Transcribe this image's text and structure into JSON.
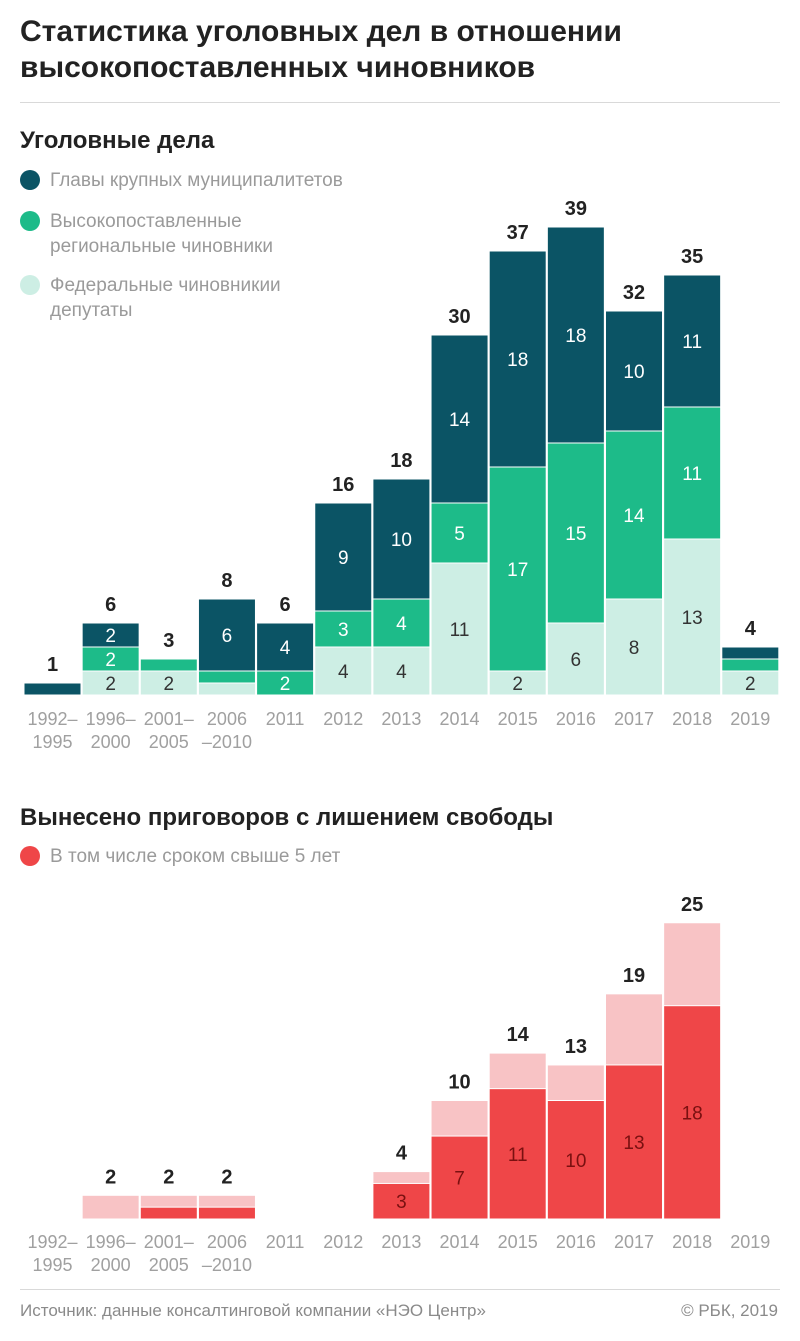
{
  "title": "Статистика уголовных дел в отношении высокопоставленных чиновников",
  "colors": {
    "municipal": "#0b5465",
    "regional": "#1dbb89",
    "federal": "#cdeee4",
    "sentence_total": "#f8c3c5",
    "sentence_over5": "#ef4648"
  },
  "charts": {
    "cases": {
      "title": "Уголовные дела",
      "legend": [
        {
          "lines": [
            "Главы крупных муниципалитетов"
          ]
        },
        {
          "lines": [
            "Высокопоставленные",
            "региональные чиновники"
          ]
        },
        {
          "lines": [
            "Федеральные чиновникии",
            "депутаты"
          ]
        }
      ]
    },
    "sentences": {
      "title": "Вынесено приговоров с лишением свободы",
      "legend": [
        {
          "lines": [
            "В том числе сроком свыше 5 лет"
          ]
        }
      ]
    }
  },
  "chart_data": [
    {
      "type": "bar",
      "stacked": true,
      "title": "Уголовные дела",
      "categories": [
        [
          "1992–",
          "1995"
        ],
        [
          "1996–",
          "2000"
        ],
        [
          "2001–",
          "2005"
        ],
        [
          "2006",
          "–2010"
        ],
        [
          "2011"
        ],
        [
          "2012"
        ],
        [
          "2013"
        ],
        [
          "2014"
        ],
        [
          "2015"
        ],
        [
          "2016"
        ],
        [
          "2017"
        ],
        [
          "2018"
        ],
        [
          "2019"
        ]
      ],
      "series": [
        {
          "name": "Федеральные чиновникии депутаты",
          "values": [
            0,
            2,
            2,
            1,
            0,
            4,
            4,
            11,
            2,
            6,
            8,
            13,
            2
          ]
        },
        {
          "name": "Высокопоставленные региональные чиновники",
          "values": [
            0,
            2,
            1,
            1,
            2,
            3,
            4,
            5,
            17,
            15,
            14,
            11,
            1
          ]
        },
        {
          "name": "Главы крупных муниципалитетов",
          "values": [
            1,
            2,
            0,
            6,
            4,
            9,
            10,
            14,
            18,
            18,
            10,
            11,
            1
          ]
        }
      ],
      "totals": [
        1,
        6,
        3,
        8,
        6,
        16,
        18,
        30,
        37,
        39,
        32,
        35,
        4
      ],
      "segment_labels_hidden": [
        [
          null,
          null,
          null
        ],
        [
          null,
          null,
          null
        ],
        [
          null,
          "1",
          null
        ],
        [
          "1",
          "1",
          null
        ],
        [
          null,
          null,
          null
        ],
        [
          null,
          null,
          null
        ],
        [
          null,
          null,
          null
        ],
        [
          null,
          null,
          null
        ],
        [
          null,
          null,
          null
        ],
        [
          null,
          null,
          null
        ],
        [
          null,
          null,
          null
        ],
        [
          null,
          null,
          null
        ],
        [
          null,
          "1",
          "1"
        ]
      ],
      "ylim": [
        0,
        39
      ]
    },
    {
      "type": "bar",
      "stacked": false,
      "title": "Вынесено приговоров с лишением свободы",
      "categories": [
        [
          "1992–",
          "1995"
        ],
        [
          "1996–",
          "2000"
        ],
        [
          "2001–",
          "2005"
        ],
        [
          "2006",
          "–2010"
        ],
        [
          "2011"
        ],
        [
          "2012"
        ],
        [
          "2013"
        ],
        [
          "2014"
        ],
        [
          "2015"
        ],
        [
          "2016"
        ],
        [
          "2017"
        ],
        [
          "2018"
        ],
        [
          "2019"
        ]
      ],
      "series": [
        {
          "name": "Вынесено приговоров с лишением свободы",
          "values": [
            null,
            2,
            2,
            2,
            null,
            null,
            4,
            10,
            14,
            13,
            19,
            25,
            null
          ]
        },
        {
          "name": "В том числе сроком свыше 5 лет",
          "values": [
            null,
            0,
            1,
            1,
            null,
            null,
            3,
            7,
            11,
            10,
            13,
            18,
            null
          ]
        }
      ],
      "ylim": [
        0,
        25
      ]
    }
  ],
  "source": "Источник: данные консалтинговой компании «НЭО Центр»",
  "copyright": "© РБК, 2019"
}
